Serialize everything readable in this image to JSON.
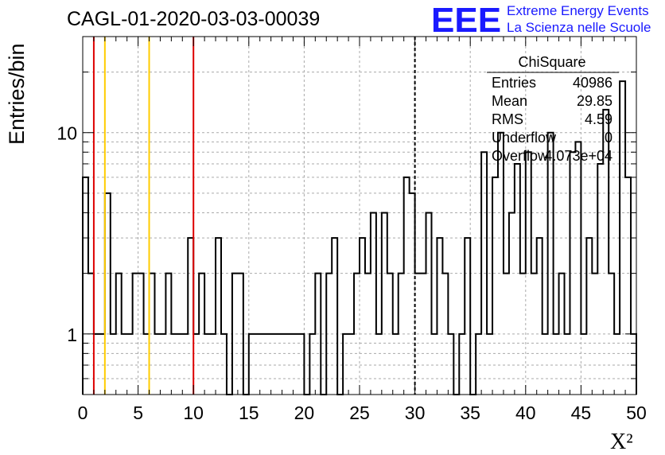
{
  "header": {
    "title": "CAGL-01-2020-03-03-00039",
    "logo_text": "EEE",
    "logo_line1": "Extreme Energy Events",
    "logo_line2": "La Scienza nelle Scuole"
  },
  "stats": {
    "title": "ChiSquare",
    "rows": [
      {
        "label": "Entries",
        "value": "40986"
      },
      {
        "label": "Mean",
        "value": "29.85"
      },
      {
        "label": "RMS",
        "value": "4.59"
      },
      {
        "label": "Underflow",
        "value": "0"
      },
      {
        "label": "Overflow",
        "value": "4.073e+04"
      }
    ]
  },
  "colors": {
    "red_line": "#dd0000",
    "yellow_line": "#ffcc00",
    "grid": "#aaaaaa",
    "logo_blue": "#1a1aff"
  },
  "chart_data": {
    "type": "bar",
    "style": "step-histogram",
    "title": "CAGL-01-2020-03-03-00039",
    "xlabel": "X²",
    "ylabel": "Entries/bin",
    "xlim": [
      0,
      50
    ],
    "ylim": [
      0.5,
      30
    ],
    "log_y": true,
    "grid": true,
    "bin_width": 0.5,
    "x_ticks": [
      0,
      5,
      10,
      15,
      20,
      25,
      30,
      35,
      40,
      45,
      50
    ],
    "y_tick_labels": [
      "1",
      "10"
    ],
    "y_tick_values": [
      1,
      10
    ],
    "values": [
      6,
      2,
      1,
      1,
      5,
      1,
      2,
      1,
      1,
      2,
      2,
      1,
      2,
      1,
      1,
      2,
      1,
      1,
      1,
      3,
      1,
      2,
      1,
      1,
      3,
      1,
      0,
      2,
      2,
      0,
      1,
      1,
      1,
      1,
      1,
      1,
      1,
      1,
      1,
      1,
      0,
      1,
      2,
      0,
      2,
      3,
      0,
      1,
      1,
      2,
      3,
      2,
      4,
      1,
      4,
      2,
      1,
      2,
      6,
      5,
      2,
      2,
      4,
      1,
      3,
      2,
      1,
      0,
      1,
      3,
      0,
      1,
      8,
      1,
      6,
      10,
      2,
      4,
      7,
      2,
      8,
      2,
      3,
      1,
      10,
      1,
      2,
      1,
      8,
      9,
      1,
      3,
      2,
      7,
      13,
      2,
      1,
      18,
      6,
      1
    ],
    "vertical_lines": [
      {
        "x": 1,
        "color": "red"
      },
      {
        "x": 2,
        "color": "yellow"
      },
      {
        "x": 6,
        "color": "yellow"
      },
      {
        "x": 10,
        "color": "red"
      },
      {
        "x": 30,
        "color": "black-dashed"
      }
    ]
  }
}
